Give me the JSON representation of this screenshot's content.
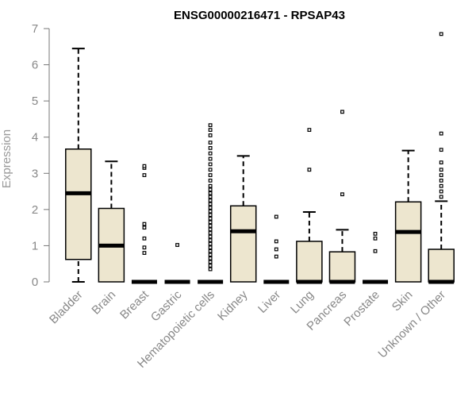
{
  "chart_data": {
    "type": "boxplot",
    "title": "ENSG00000216471 - RPSAP43",
    "xlabel": "",
    "ylabel": "Expression",
    "ylim": [
      0,
      7
    ],
    "yticks": [
      0,
      1,
      2,
      3,
      4,
      5,
      6,
      7
    ],
    "box_fill": "#ede6cf",
    "line_color": "#000000",
    "categories": [
      "Bladder",
      "Brain",
      "Breast",
      "Gastric",
      "Hematopoietic cells",
      "Kidney",
      "Liver",
      "Lung",
      "Pancreas",
      "Prostate",
      "Skin",
      "Unknown / Other"
    ],
    "boxes": [
      {
        "name": "Bladder",
        "whisker_low": 0,
        "q1": 0.62,
        "median": 2.45,
        "q3": 3.67,
        "whisker_high": 6.45,
        "outliers": []
      },
      {
        "name": "Brain",
        "whisker_low": 0,
        "q1": 0,
        "median": 1.0,
        "q3": 2.03,
        "whisker_high": 3.33,
        "outliers": []
      },
      {
        "name": "Breast",
        "whisker_low": 0,
        "q1": 0,
        "median": 0,
        "q3": 0,
        "whisker_high": 0,
        "outliers": [
          0.8,
          0.95,
          1.2,
          1.5,
          1.6,
          2.95,
          3.15,
          3.2
        ]
      },
      {
        "name": "Gastric",
        "whisker_low": 0,
        "q1": 0,
        "median": 0,
        "q3": 0,
        "whisker_high": 0,
        "outliers": [
          1.02
        ]
      },
      {
        "name": "Hematopoietic cells",
        "whisker_low": 0,
        "q1": 0,
        "median": 0,
        "q3": 0,
        "whisker_high": 0,
        "outliers": [
          0.35,
          0.45,
          0.55,
          0.65,
          0.75,
          0.85,
          0.95,
          1.05,
          1.15,
          1.25,
          1.35,
          1.45,
          1.55,
          1.65,
          1.75,
          1.85,
          1.95,
          2.05,
          2.15,
          2.25,
          2.35,
          2.45,
          2.55,
          2.65,
          2.8,
          2.95,
          3.1,
          3.25,
          3.4,
          3.55,
          3.7,
          3.85,
          4.05,
          4.2,
          4.33
        ]
      },
      {
        "name": "Kidney",
        "whisker_low": 0,
        "q1": 0,
        "median": 1.4,
        "q3": 2.1,
        "whisker_high": 3.48,
        "outliers": []
      },
      {
        "name": "Liver",
        "whisker_low": 0,
        "q1": 0,
        "median": 0,
        "q3": 0,
        "whisker_high": 0,
        "outliers": [
          0.7,
          0.9,
          1.12,
          1.8
        ]
      },
      {
        "name": "Lung",
        "whisker_low": 0,
        "q1": 0,
        "median": 0,
        "q3": 1.12,
        "whisker_high": 1.93,
        "outliers": [
          3.1,
          4.2
        ]
      },
      {
        "name": "Pancreas",
        "whisker_low": 0,
        "q1": 0,
        "median": 0,
        "q3": 0.83,
        "whisker_high": 1.44,
        "outliers": [
          2.42,
          4.7
        ]
      },
      {
        "name": "Prostate",
        "whisker_low": 0,
        "q1": 0,
        "median": 0,
        "q3": 0,
        "whisker_high": 0,
        "outliers": [
          0.85,
          1.2,
          1.33
        ]
      },
      {
        "name": "Skin",
        "whisker_low": 0,
        "q1": 0,
        "median": 1.38,
        "q3": 2.21,
        "whisker_high": 3.63,
        "outliers": []
      },
      {
        "name": "Unknown / Other",
        "whisker_low": 0,
        "q1": 0,
        "median": 0,
        "q3": 0.9,
        "whisker_high": 2.23,
        "outliers": [
          2.35,
          2.5,
          2.65,
          2.8,
          2.95,
          3.1,
          3.3,
          3.65,
          4.1,
          6.85
        ]
      }
    ]
  }
}
